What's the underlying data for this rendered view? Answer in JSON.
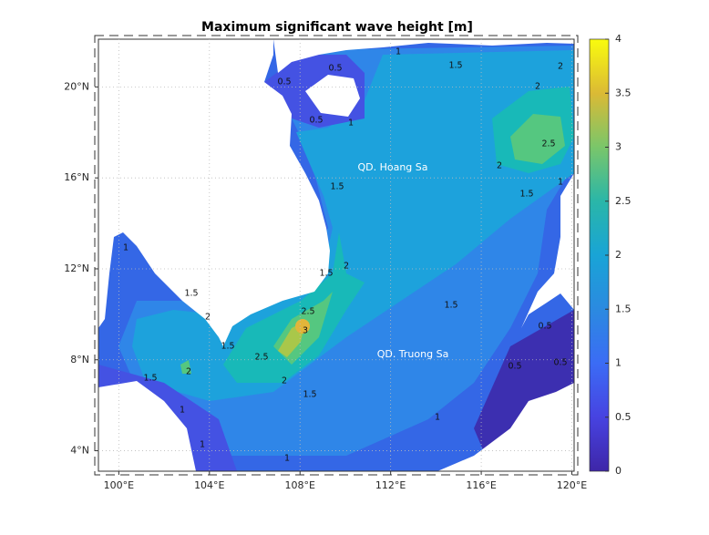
{
  "title": "Maximum significant wave height [m]",
  "map": {
    "xlim": [
      99.1,
      120.1
    ],
    "ylim": [
      3.1,
      22.1
    ],
    "xticks": [
      {
        "value": 100,
        "label": "100°E"
      },
      {
        "value": 104,
        "label": "104°E"
      },
      {
        "value": 108,
        "label": "108°E"
      },
      {
        "value": 112,
        "label": "112°E"
      },
      {
        "value": 116,
        "label": "116°E"
      },
      {
        "value": 120,
        "label": "120°E"
      }
    ],
    "yticks": [
      {
        "value": 4,
        "label": "4°N"
      },
      {
        "value": 8,
        "label": "8°N"
      },
      {
        "value": 12,
        "label": "12°N"
      },
      {
        "value": 16,
        "label": "16°N"
      },
      {
        "value": 20,
        "label": "20°N"
      }
    ],
    "place_labels": [
      "QD. Hoang Sa",
      "QD. Truong Sa"
    ],
    "contour_labels": [
      "0.5",
      "1",
      "1.5",
      "2",
      "0.5",
      "0.5",
      "1",
      "2",
      "2.5",
      "2",
      "1.5",
      "1",
      "1.5",
      "1",
      "1.5",
      "2",
      "1.5",
      "2.5",
      "2",
      "1.5",
      "2.5",
      "3",
      "2",
      "1.5",
      "2",
      "1.5",
      "1.5",
      "0.5",
      "0.5",
      "0.5",
      "1",
      "1",
      "1",
      "1"
    ]
  },
  "colorbar": {
    "lim": [
      0,
      4
    ],
    "ticks": [
      0,
      0.5,
      1,
      1.5,
      2,
      2.5,
      3,
      3.5,
      4
    ]
  }
}
